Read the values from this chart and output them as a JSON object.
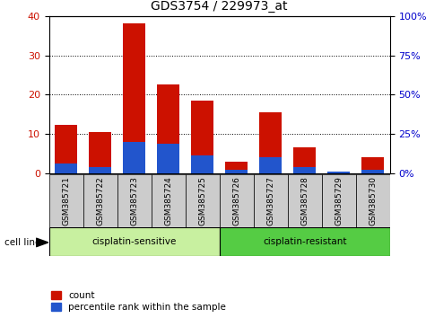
{
  "title": "GDS3754 / 229973_at",
  "samples": [
    "GSM385721",
    "GSM385722",
    "GSM385723",
    "GSM385724",
    "GSM385725",
    "GSM385726",
    "GSM385727",
    "GSM385728",
    "GSM385729",
    "GSM385730"
  ],
  "red_values": [
    12.3,
    10.5,
    38.0,
    22.5,
    18.5,
    3.0,
    15.5,
    6.5,
    0.5,
    4.0
  ],
  "blue_values": [
    2.5,
    1.5,
    8.0,
    7.5,
    4.5,
    1.0,
    4.0,
    1.5,
    0.5,
    1.0
  ],
  "left_ylim": [
    0,
    40
  ],
  "right_ylim": [
    0,
    100
  ],
  "left_yticks": [
    0,
    10,
    20,
    30,
    40
  ],
  "right_yticks": [
    0,
    25,
    50,
    75,
    100
  ],
  "red_color": "#cc1100",
  "blue_color": "#2255cc",
  "grid_color": "black",
  "bar_width": 0.65,
  "group1_label": "cisplatin-sensitive",
  "group2_label": "cisplatin-resistant",
  "group1_indices": [
    0,
    1,
    2,
    3,
    4
  ],
  "group2_indices": [
    5,
    6,
    7,
    8,
    9
  ],
  "group1_color": "#c8f0a0",
  "group2_color": "#55cc44",
  "cell_line_label": "cell line",
  "legend_red": "count",
  "legend_blue": "percentile rank within the sample",
  "tick_label_bg": "#cccccc",
  "right_label_color": "#0000cc",
  "left_label_color": "#cc1100",
  "bg_color": "#ffffff"
}
